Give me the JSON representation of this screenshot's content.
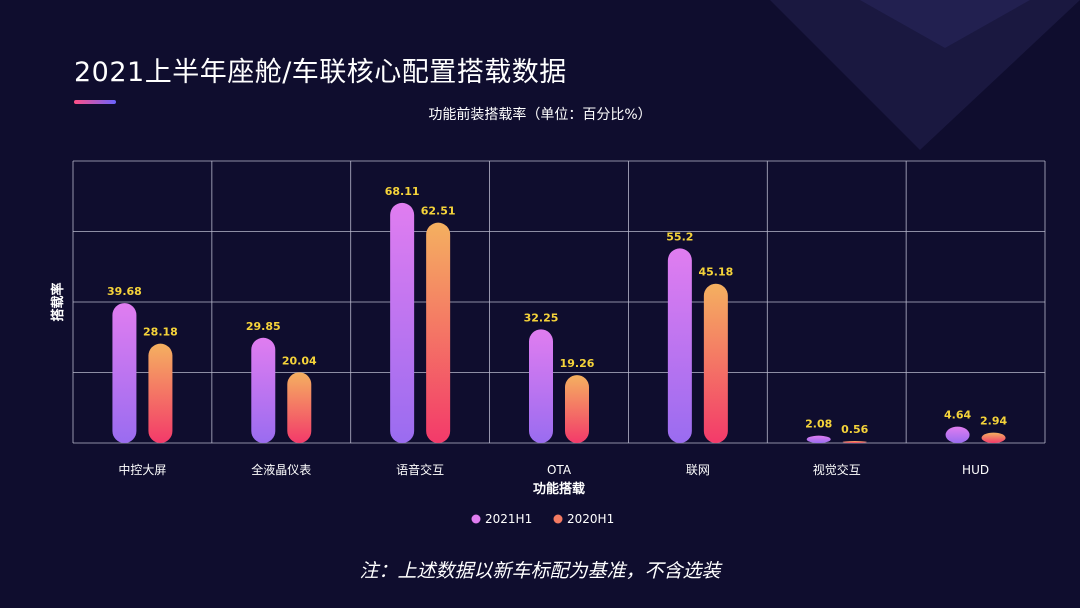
{
  "page": {
    "title": "2021上半年座舱/车联核心配置搭载数据",
    "note": "注：上述数据以新车标配为基准，不含选装"
  },
  "colors": {
    "background": "#0f0d2e",
    "grid": "#b8b8cc",
    "series_2021_top": "#e07df0",
    "series_2021_bottom": "#9a6cf0",
    "series_2020_top": "#f4b060",
    "series_2020_bottom": "#f33a6a",
    "value_label": "#f5d33a"
  },
  "chart_data": {
    "type": "bar",
    "title": "功能前装搭载率（单位：百分比%）",
    "xlabel": "功能搭载",
    "ylabel": "搭载率",
    "categories": [
      "中控大屏",
      "全液晶仪表",
      "语音交互",
      "OTA",
      "联网",
      "视觉交互",
      "HUD"
    ],
    "series": [
      {
        "name": "2021H1",
        "values": [
          39.68,
          29.85,
          68.11,
          32.25,
          55.2,
          2.08,
          4.64
        ]
      },
      {
        "name": "2020H1",
        "values": [
          28.18,
          20.04,
          62.51,
          19.26,
          45.18,
          0.56,
          2.94
        ]
      }
    ],
    "ylim": [
      0,
      80
    ],
    "grid": true,
    "legend_position": "bottom"
  }
}
